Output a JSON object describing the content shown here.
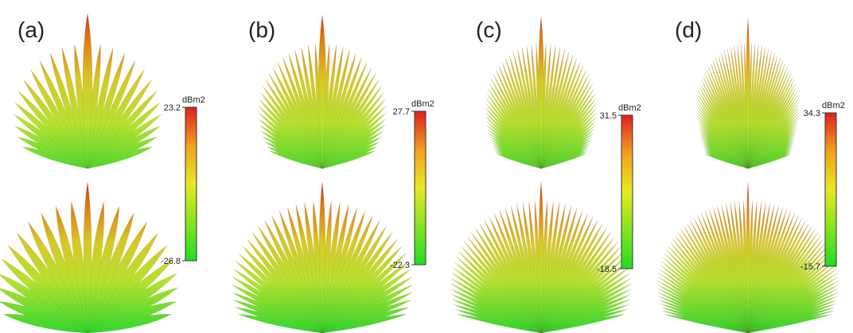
{
  "panels": [
    {
      "label": "(a)",
      "unit": "dBm2",
      "max": "23.2",
      "min": "-26.8"
    },
    {
      "label": "(b)",
      "unit": "dBm2",
      "max": "27.7",
      "min": "-22.3"
    },
    {
      "label": "(c)",
      "unit": "dBm2",
      "max": "31.5",
      "min": "-18.5"
    },
    {
      "label": "(d)",
      "unit": "dBm2",
      "max": "34.3",
      "min": "-15.7"
    }
  ]
}
